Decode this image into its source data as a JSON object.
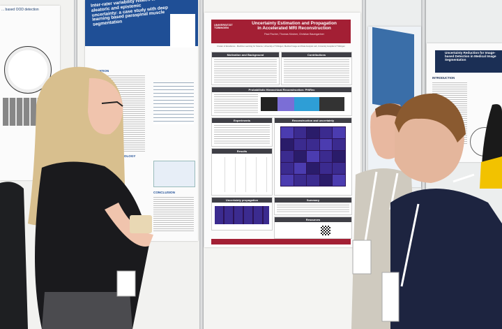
{
  "main_poster": {
    "university": "UNIVERSITÄT TÜBINGEN",
    "title_line1": "Uncertainty Estimation and Propagation",
    "title_line2": "in Accelerated MRI Reconstruction",
    "authors": "Paul Fischer, Thomas Küstner, Christian Baumgartner",
    "affiliation": "Cluster of Excellence - Machine Learning for Science, University of Tübingen; Medical Image and Data Analysis Lab, University Hospital of Tübingen",
    "sections": {
      "motivation": "Motivation and Background",
      "contributions": "Contributions",
      "method": "Probabilistic Hierarchical Reconstruction: PHiRec",
      "experiments": "Experiments",
      "reconstruction": "Reconstruction and uncertainty",
      "results": "Results",
      "summary": "Summary",
      "uncertainty_propagation": "Uncertainty propagation",
      "resources": "Resources"
    }
  },
  "left_poster": {
    "title": "Inter-rater variability relates to aleatoric and epistemic uncertainty: a case study with deep learning based paraspinal muscle segmentation",
    "motivation": "MOTIVATION",
    "methodology": "METHODOLOGY",
    "conclusion": "CONCLUSION"
  },
  "far_left_poster": {
    "title": "... based OOD detection"
  },
  "right_poster": {
    "title": "Uncertainty Reduction for Image-based Detection in Medical Image Segmentation",
    "intro": "INTRODUCTION"
  },
  "colors": {
    "main_header": "#a31f34",
    "left_header": "#1f4f96",
    "section_header": "#3f3f46"
  }
}
